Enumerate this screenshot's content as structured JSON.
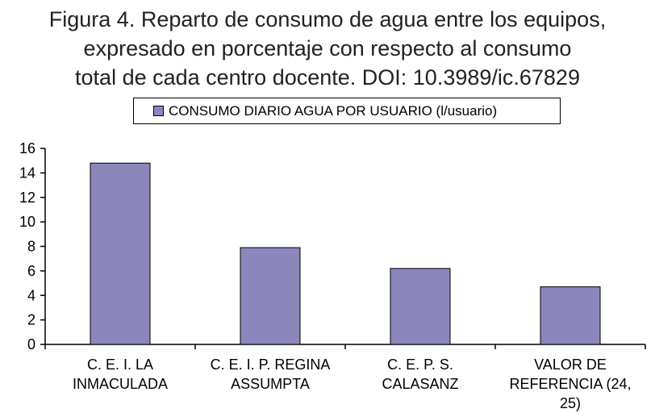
{
  "caption": {
    "line1": "Figura 4. Reparto de consumo de agua entre los equipos,",
    "line2": "expresado en porcentaje con respecto al consumo",
    "line3": "total de cada centro docente. DOI: 10.3989/ic.67829"
  },
  "colors": {
    "bar_fill": "#8b87bd",
    "bar_stroke": "#000000",
    "axis": "#000000"
  },
  "chart_data": {
    "type": "bar",
    "categories": [
      [
        "C. E. I. LA",
        "INMACULADA"
      ],
      [
        "C. E. I. P. REGINA",
        "ASSUMPTA"
      ],
      [
        "C. E. P. S.",
        "CALASANZ"
      ],
      [
        "VALOR DE",
        "REFERENCIA (24,",
        "25)"
      ]
    ],
    "series": [
      {
        "name": "CONSUMO DIARIO AGUA POR USUARIO (l/usuario)",
        "values": [
          14.8,
          7.9,
          6.2,
          4.7
        ]
      }
    ],
    "ylim": [
      0,
      16
    ],
    "yticks": [
      "0",
      "2",
      "4",
      "6",
      "8",
      "10",
      "12",
      "14",
      "16"
    ],
    "grid": false,
    "legend_position": "top-center"
  }
}
